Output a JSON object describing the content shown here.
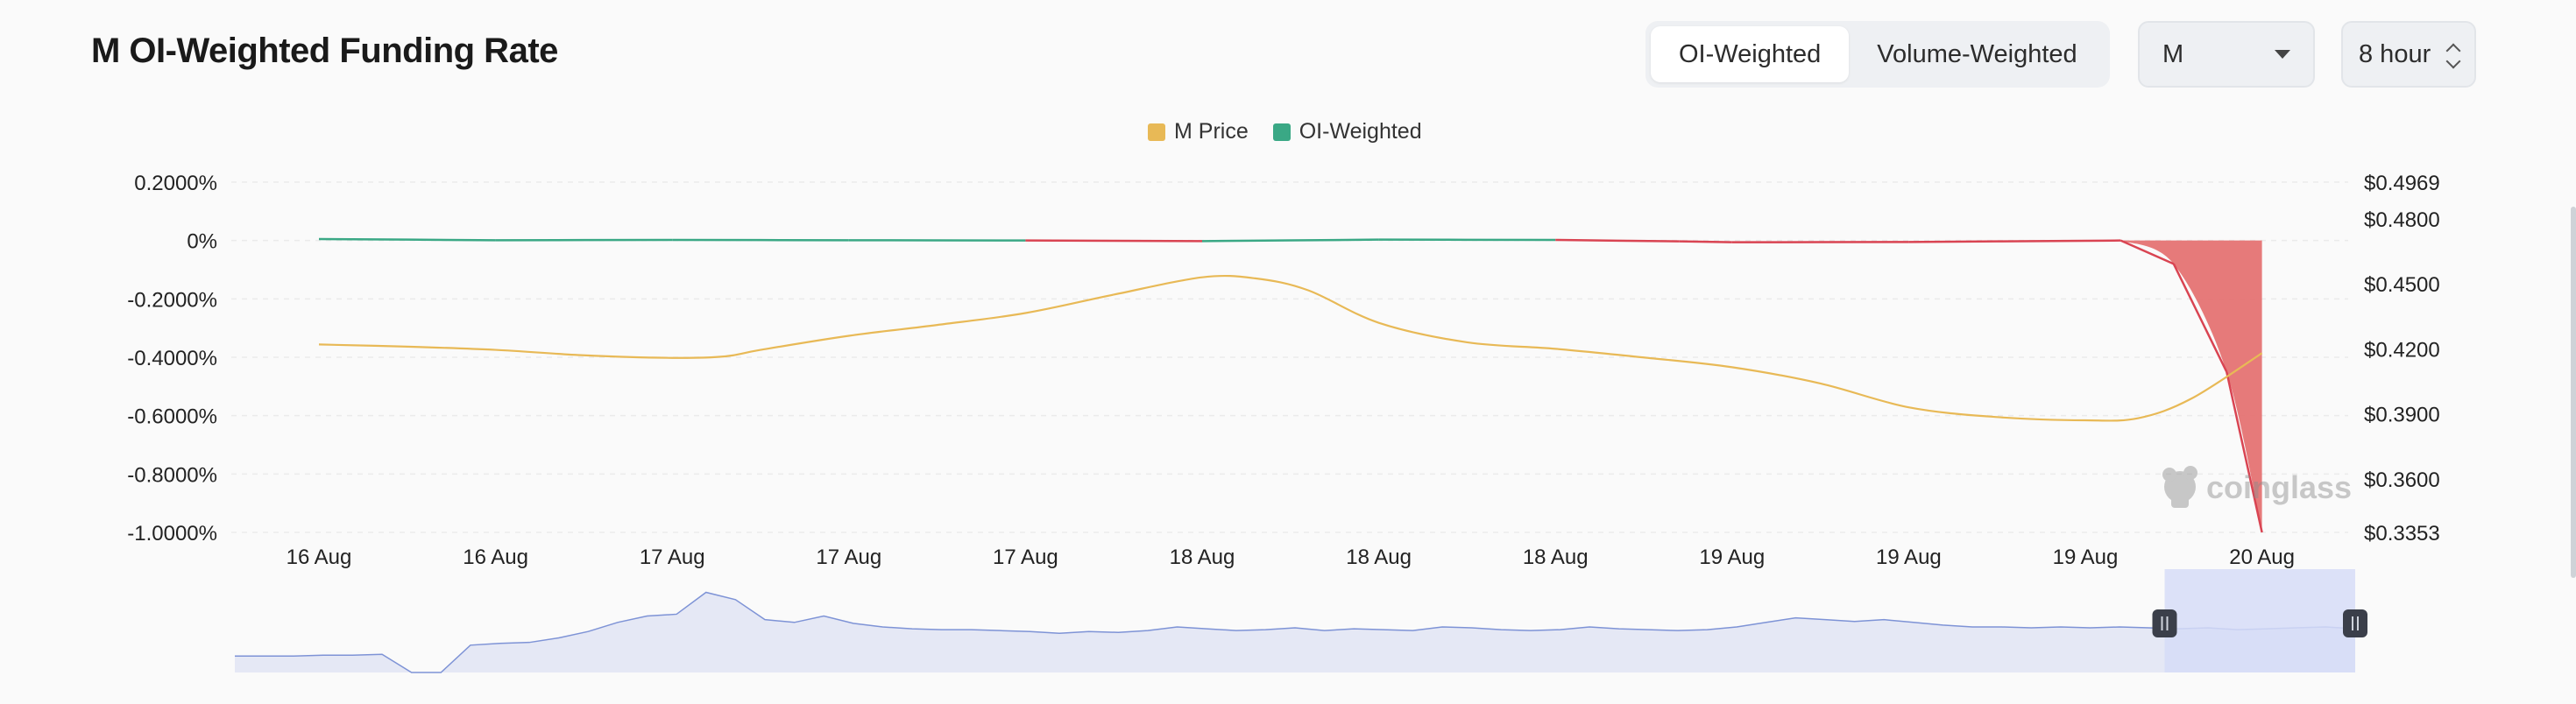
{
  "header": {
    "title": "M OI-Weighted Funding Rate"
  },
  "controls": {
    "tabs": [
      {
        "label": "OI-Weighted",
        "active": true
      },
      {
        "label": "Volume-Weighted",
        "active": false
      }
    ],
    "symbol": {
      "value": "M",
      "icon": "chevron-down-icon"
    },
    "interval": {
      "value": "8 hour",
      "icon": "up-down-stepper-icon"
    }
  },
  "colors": {
    "price": "#e8b956",
    "funding_positive": "#3aa885",
    "funding_negative": "#d94452",
    "negative_fill": "#e57373",
    "navigator_fill": "#e5e8f5",
    "navigator_line": "#7e93d6",
    "navigator_window": "#d6dcf7"
  },
  "watermark": {
    "text": "coinglass",
    "icon": "coinglass-logo-icon"
  },
  "chart_data": {
    "type": "line",
    "legend": [
      {
        "name": "M Price",
        "color": "#e8b956"
      },
      {
        "name": "OI-Weighted",
        "color": "#3aa885"
      }
    ],
    "legend_position": "top-center",
    "categories": [
      "16 Aug",
      "16 Aug",
      "17 Aug",
      "17 Aug",
      "17 Aug",
      "18 Aug",
      "18 Aug",
      "18 Aug",
      "19 Aug",
      "19 Aug",
      "19 Aug",
      "20 Aug"
    ],
    "y_left": {
      "ticks": [
        "0.2000%",
        "0%",
        "-0.2000%",
        "-0.4000%",
        "-0.6000%",
        "-0.8000%",
        "-1.0000%"
      ],
      "tick_values": [
        0.2,
        0,
        -0.2,
        -0.4,
        -0.6,
        -0.8,
        -1.0
      ],
      "range": [
        -1.0,
        0.2
      ]
    },
    "y_right": {
      "ticks": [
        "$0.4969",
        "$0.4800",
        "$0.4500",
        "$0.4200",
        "$0.3900",
        "$0.3600",
        "$0.3353"
      ],
      "tick_values": [
        0.4969,
        0.48,
        0.45,
        0.42,
        0.39,
        0.36,
        0.3353
      ],
      "range": [
        0.3353,
        0.4969
      ]
    },
    "grid": true,
    "series": [
      {
        "name": "M Price",
        "axis": "right",
        "x": [
          0,
          0.5,
          1,
          1.5,
          2,
          2.3,
          2.5,
          3,
          3.5,
          4,
          4.5,
          5,
          5.3,
          5.6,
          6,
          6.5,
          7,
          7.5,
          8,
          8.5,
          9,
          9.5,
          10,
          10.3,
          10.6,
          11
        ],
        "values": [
          0.422,
          0.421,
          0.4195,
          0.417,
          0.4158,
          0.4165,
          0.4195,
          0.426,
          0.431,
          0.4365,
          0.445,
          0.453,
          0.4525,
          0.447,
          0.432,
          0.423,
          0.42,
          0.416,
          0.4115,
          0.404,
          0.393,
          0.3885,
          0.387,
          0.388,
          0.397,
          0.418
        ]
      },
      {
        "name": "OI-Weighted",
        "axis": "left",
        "x": [
          0,
          1,
          2,
          3,
          4,
          5,
          6,
          7,
          7.7,
          8,
          9,
          10,
          10.2,
          10.5,
          10.8,
          11
        ],
        "values": [
          0.005,
          0.001,
          0.002,
          0.001,
          0.0,
          -0.002,
          0.003,
          0.002,
          -0.003,
          -0.006,
          -0.005,
          -0.001,
          0.0,
          -0.08,
          -0.45,
          -1.0
        ]
      }
    ]
  },
  "navigator": {
    "values": [
      0.18,
      0.18,
      0.18,
      0.19,
      0.19,
      0.2,
      0.0,
      0.0,
      0.3,
      0.32,
      0.33,
      0.38,
      0.45,
      0.55,
      0.62,
      0.64,
      0.88,
      0.8,
      0.58,
      0.55,
      0.62,
      0.54,
      0.5,
      0.48,
      0.47,
      0.47,
      0.46,
      0.45,
      0.43,
      0.45,
      0.44,
      0.46,
      0.5,
      0.48,
      0.46,
      0.47,
      0.49,
      0.46,
      0.48,
      0.47,
      0.46,
      0.5,
      0.49,
      0.47,
      0.46,
      0.47,
      0.5,
      0.48,
      0.47,
      0.46,
      0.47,
      0.5,
      0.55,
      0.6,
      0.58,
      0.56,
      0.58,
      0.55,
      0.52,
      0.5,
      0.5,
      0.49,
      0.5,
      0.49,
      0.5,
      0.49,
      0.48,
      0.49,
      0.47,
      0.48,
      0.49,
      0.5,
      0.48
    ],
    "window": [
      0.925,
      1.0
    ]
  }
}
